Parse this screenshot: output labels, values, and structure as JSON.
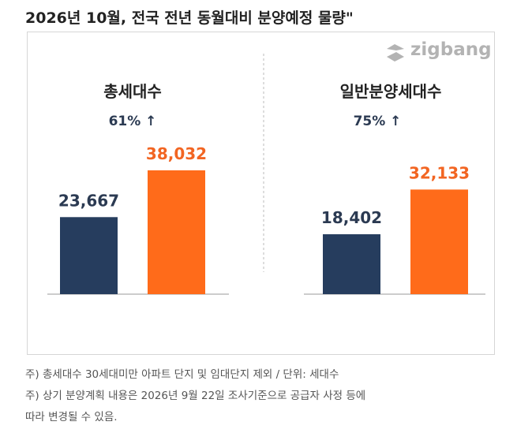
{
  "title": "2026년 10월, 전국 전년 동월대비 분양예정 물량\"",
  "logo": {
    "text": "zigbang",
    "icon": "zigbang-logo-icon"
  },
  "colors": {
    "prev": "#263D5E",
    "curr": "#FF6B1A",
    "label_prev": "#2B3A52",
    "label_curr": "#F26522"
  },
  "chart_data": [
    {
      "type": "bar",
      "title": "총세대수",
      "change": "61% ↑",
      "categories": [
        "",
        ""
      ],
      "values": [
        23667,
        38032
      ],
      "value_labels": [
        "23,667",
        "38,032"
      ]
    },
    {
      "type": "bar",
      "title": "일반분양세대수",
      "change": "75% ↑",
      "categories": [
        "",
        ""
      ],
      "values": [
        18402,
        32133
      ],
      "value_labels": [
        "18,402",
        "32,133"
      ]
    }
  ],
  "notes": [
    "주) 총세대수 30세대미만 아파트  단지 및 임대단지 제외 / 단위: 세대수",
    "주) 상기 분양계획 내용은 2026년 9월 22일 조사기준으로 공급자 사정 등에",
    "따라 변경될 수 있음."
  ]
}
